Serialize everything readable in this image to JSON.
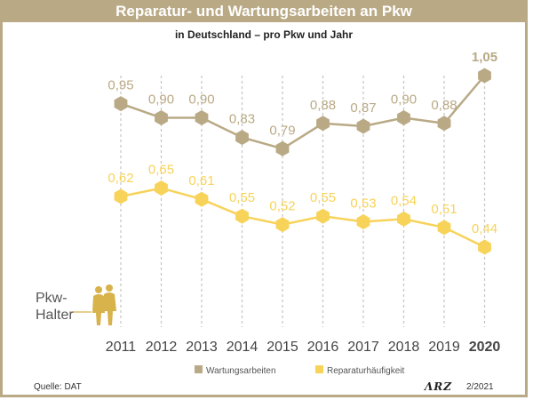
{
  "header": {
    "title": "Reparatur- und Wartungsarbeiten an Pkw",
    "subtitle": "in Deutschland – pro Pkw und Jahr"
  },
  "annotation": {
    "line1": "Pkw-",
    "line2": "Halter"
  },
  "footer": {
    "source": "Quelle: DAT",
    "logo": "ΛRZ",
    "date": "2/2021"
  },
  "colors": {
    "wartung": "#b9a985",
    "reparatur": "#f7d35a",
    "frame": "#b9a985"
  },
  "chart_data": {
    "type": "line",
    "title": "Reparatur- und Wartungsarbeiten an Pkw",
    "subtitle": "in Deutschland – pro Pkw und Jahr",
    "x": [
      "2011",
      "2012",
      "2013",
      "2014",
      "2015",
      "2016",
      "2017",
      "2018",
      "2019",
      "2020"
    ],
    "highlight_x": "2020",
    "grid": false,
    "legend": "bottom",
    "series": [
      {
        "name": "Wartungsarbeiten",
        "values": [
          0.95,
          0.9,
          0.9,
          0.83,
          0.79,
          0.88,
          0.87,
          0.9,
          0.88,
          1.05
        ],
        "labels": [
          "0,95",
          "0,90",
          "0,90",
          "0,83",
          "0,79",
          "0,88",
          "0,87",
          "0,90",
          "0,88",
          "1,05"
        ]
      },
      {
        "name": "Reparaturhäufigkeit",
        "values": [
          0.62,
          0.65,
          0.61,
          0.55,
          0.52,
          0.55,
          0.53,
          0.54,
          0.51,
          0.44
        ],
        "labels": [
          "0,62",
          "0,65",
          "0,61",
          "0,55",
          "0,52",
          "0,55",
          "0,53",
          "0,54",
          "0,51",
          "0,44"
        ]
      }
    ]
  }
}
